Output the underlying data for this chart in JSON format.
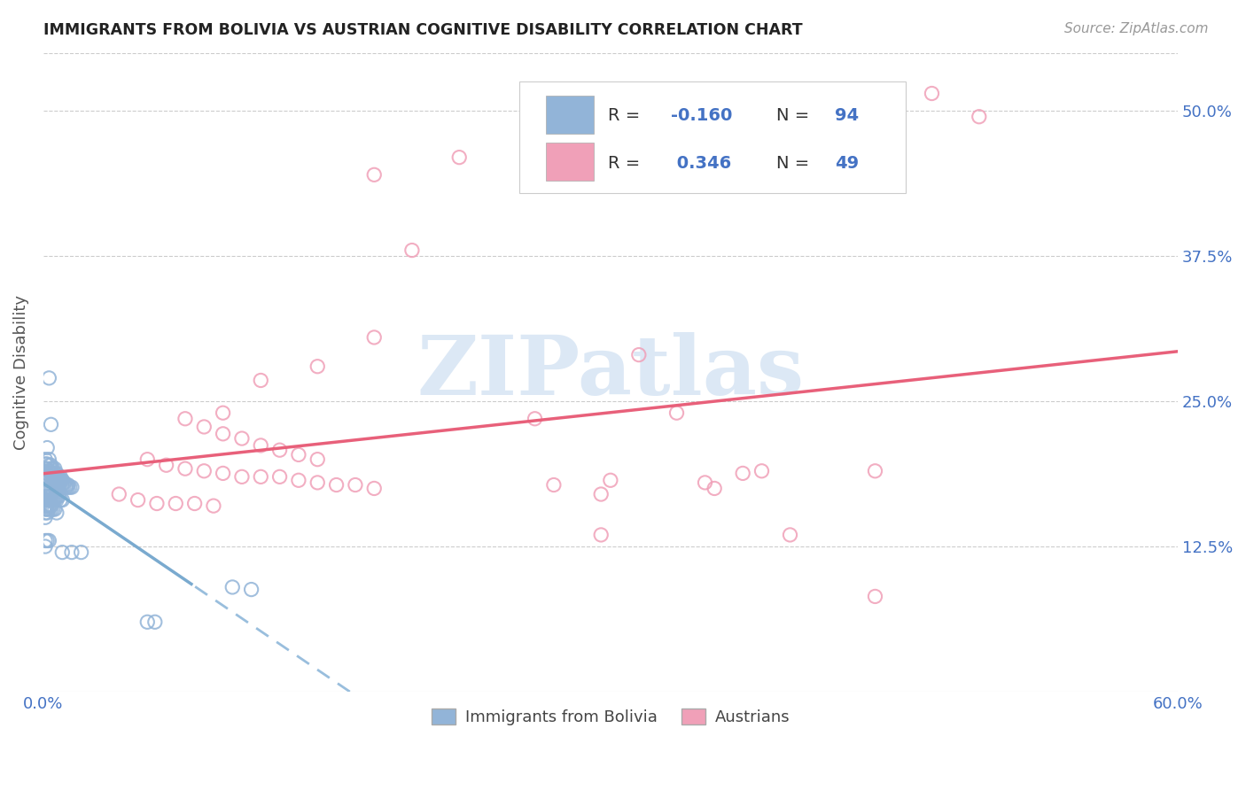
{
  "title": "IMMIGRANTS FROM BOLIVIA VS AUSTRIAN COGNITIVE DISABILITY CORRELATION CHART",
  "source": "Source: ZipAtlas.com",
  "ylabel": "Cognitive Disability",
  "xlim": [
    0.0,
    0.6
  ],
  "ylim": [
    0.0,
    0.55
  ],
  "yticks": [
    0.125,
    0.25,
    0.375,
    0.5
  ],
  "ytick_labels": [
    "12.5%",
    "25.0%",
    "37.5%",
    "50.0%"
  ],
  "blue_color": "#92b4d8",
  "pink_color": "#f0a0b8",
  "line_blue_solid": "#7aaacf",
  "line_blue_dash": "#99bedd",
  "line_pink": "#e8607a",
  "watermark_text": "ZIPatlas",
  "watermark_color": "#dce8f5",
  "blue_points": [
    [
      0.002,
      0.21
    ],
    [
      0.003,
      0.2
    ],
    [
      0.003,
      0.195
    ],
    [
      0.003,
      0.19
    ],
    [
      0.004,
      0.195
    ],
    [
      0.004,
      0.192
    ],
    [
      0.004,
      0.188
    ],
    [
      0.004,
      0.185
    ],
    [
      0.005,
      0.192
    ],
    [
      0.005,
      0.188
    ],
    [
      0.005,
      0.185
    ],
    [
      0.005,
      0.182
    ],
    [
      0.006,
      0.192
    ],
    [
      0.006,
      0.188
    ],
    [
      0.006,
      0.185
    ],
    [
      0.006,
      0.182
    ],
    [
      0.007,
      0.188
    ],
    [
      0.007,
      0.185
    ],
    [
      0.007,
      0.182
    ],
    [
      0.007,
      0.18
    ],
    [
      0.008,
      0.185
    ],
    [
      0.008,
      0.182
    ],
    [
      0.008,
      0.18
    ],
    [
      0.008,
      0.178
    ],
    [
      0.009,
      0.185
    ],
    [
      0.009,
      0.182
    ],
    [
      0.009,
      0.18
    ],
    [
      0.01,
      0.182
    ],
    [
      0.01,
      0.18
    ],
    [
      0.01,
      0.178
    ],
    [
      0.011,
      0.18
    ],
    [
      0.011,
      0.178
    ],
    [
      0.012,
      0.178
    ],
    [
      0.012,
      0.176
    ],
    [
      0.013,
      0.178
    ],
    [
      0.013,
      0.176
    ],
    [
      0.014,
      0.176
    ],
    [
      0.015,
      0.176
    ],
    [
      0.001,
      0.2
    ],
    [
      0.001,
      0.196
    ],
    [
      0.001,
      0.192
    ],
    [
      0.001,
      0.188
    ],
    [
      0.002,
      0.196
    ],
    [
      0.002,
      0.192
    ],
    [
      0.002,
      0.188
    ],
    [
      0.002,
      0.184
    ],
    [
      0.001,
      0.175
    ],
    [
      0.001,
      0.172
    ],
    [
      0.001,
      0.168
    ],
    [
      0.001,
      0.165
    ],
    [
      0.002,
      0.175
    ],
    [
      0.002,
      0.172
    ],
    [
      0.002,
      0.168
    ],
    [
      0.003,
      0.175
    ],
    [
      0.003,
      0.172
    ],
    [
      0.003,
      0.168
    ],
    [
      0.003,
      0.165
    ],
    [
      0.004,
      0.172
    ],
    [
      0.004,
      0.168
    ],
    [
      0.004,
      0.165
    ],
    [
      0.005,
      0.172
    ],
    [
      0.005,
      0.168
    ],
    [
      0.005,
      0.165
    ],
    [
      0.006,
      0.168
    ],
    [
      0.006,
      0.165
    ],
    [
      0.007,
      0.168
    ],
    [
      0.007,
      0.165
    ],
    [
      0.008,
      0.168
    ],
    [
      0.009,
      0.165
    ],
    [
      0.01,
      0.165
    ],
    [
      0.001,
      0.16
    ],
    [
      0.001,
      0.157
    ],
    [
      0.001,
      0.154
    ],
    [
      0.001,
      0.15
    ],
    [
      0.002,
      0.16
    ],
    [
      0.002,
      0.157
    ],
    [
      0.002,
      0.154
    ],
    [
      0.003,
      0.16
    ],
    [
      0.003,
      0.157
    ],
    [
      0.004,
      0.16
    ],
    [
      0.004,
      0.157
    ],
    [
      0.005,
      0.157
    ],
    [
      0.006,
      0.157
    ],
    [
      0.007,
      0.154
    ],
    [
      0.003,
      0.27
    ],
    [
      0.004,
      0.23
    ],
    [
      0.001,
      0.13
    ],
    [
      0.001,
      0.125
    ],
    [
      0.002,
      0.13
    ],
    [
      0.003,
      0.13
    ],
    [
      0.01,
      0.12
    ],
    [
      0.015,
      0.12
    ],
    [
      0.02,
      0.12
    ],
    [
      0.055,
      0.06
    ],
    [
      0.059,
      0.06
    ],
    [
      0.1,
      0.09
    ],
    [
      0.11,
      0.088
    ]
  ],
  "pink_points": [
    [
      0.47,
      0.515
    ],
    [
      0.495,
      0.495
    ],
    [
      0.22,
      0.46
    ],
    [
      0.44,
      0.19
    ],
    [
      0.175,
      0.445
    ],
    [
      0.195,
      0.38
    ],
    [
      0.175,
      0.305
    ],
    [
      0.145,
      0.28
    ],
    [
      0.115,
      0.268
    ],
    [
      0.095,
      0.24
    ],
    [
      0.315,
      0.29
    ],
    [
      0.335,
      0.24
    ],
    [
      0.35,
      0.18
    ],
    [
      0.355,
      0.175
    ],
    [
      0.37,
      0.188
    ],
    [
      0.38,
      0.19
    ],
    [
      0.075,
      0.235
    ],
    [
      0.085,
      0.228
    ],
    [
      0.095,
      0.222
    ],
    [
      0.105,
      0.218
    ],
    [
      0.115,
      0.212
    ],
    [
      0.125,
      0.208
    ],
    [
      0.135,
      0.204
    ],
    [
      0.145,
      0.2
    ],
    [
      0.055,
      0.2
    ],
    [
      0.065,
      0.195
    ],
    [
      0.075,
      0.192
    ],
    [
      0.085,
      0.19
    ],
    [
      0.095,
      0.188
    ],
    [
      0.105,
      0.185
    ],
    [
      0.115,
      0.185
    ],
    [
      0.125,
      0.185
    ],
    [
      0.135,
      0.182
    ],
    [
      0.145,
      0.18
    ],
    [
      0.155,
      0.178
    ],
    [
      0.165,
      0.178
    ],
    [
      0.175,
      0.175
    ],
    [
      0.04,
      0.17
    ],
    [
      0.05,
      0.165
    ],
    [
      0.06,
      0.162
    ],
    [
      0.07,
      0.162
    ],
    [
      0.08,
      0.162
    ],
    [
      0.09,
      0.16
    ],
    [
      0.295,
      0.135
    ],
    [
      0.395,
      0.135
    ],
    [
      0.44,
      0.082
    ],
    [
      0.295,
      0.17
    ],
    [
      0.27,
      0.178
    ],
    [
      0.3,
      0.182
    ],
    [
      0.26,
      0.235
    ]
  ]
}
